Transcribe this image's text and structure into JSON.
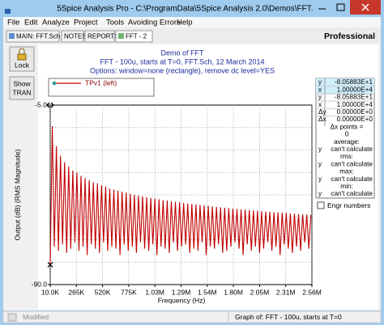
{
  "window": {
    "title": "5Spice Analysis Pro - C:\\ProgramData\\5Spice Analysis 2.0\\Demos\\FFT.Sch"
  },
  "menu": [
    "File",
    "Edit",
    "Analyze",
    "Project",
    "Tools",
    "Avoiding Errors",
    "Help"
  ],
  "tabs": [
    "MAIN: FFT.Sch",
    "NOTES",
    "REPORTS",
    "FFT - 2"
  ],
  "edition": "Professional",
  "buttons": {
    "lock": "Lock",
    "show_tran": [
      "Show",
      "TRAN"
    ]
  },
  "chart_data": {
    "type": "line",
    "title": [
      "Demo of FFT",
      "FFT - 100u, starts at T=0,    FFT.Sch,    12 March 2014",
      "Options: window=none (rectangle),  remove dc level=YES"
    ],
    "xlabel": "Frequency (Hz)",
    "ylabel": "Output (dB) (RMS Magnitude)",
    "xlim": [
      10000,
      2560000
    ],
    "ylim": [
      -90,
      -5
    ],
    "xticks": [
      {
        "value": 10000,
        "label": "10.0K"
      },
      {
        "value": 265000,
        "label": "265K"
      },
      {
        "value": 520000,
        "label": "520K"
      },
      {
        "value": 775000,
        "label": "775K"
      },
      {
        "value": 1030000,
        "label": "1.03M"
      },
      {
        "value": 1285000,
        "label": "1.29M"
      },
      {
        "value": 1540000,
        "label": "1.54M"
      },
      {
        "value": 1795000,
        "label": "1.80M"
      },
      {
        "value": 2050000,
        "label": "2.05M"
      },
      {
        "value": 2305000,
        "label": "2.31M"
      },
      {
        "value": 2560000,
        "label": "2.56M"
      }
    ],
    "yticks": [
      {
        "value": -5,
        "label": "-5.0"
      },
      {
        "value": -90,
        "label": "-90.0"
      }
    ],
    "grid": true,
    "x": [
      10000,
      30000,
      50000,
      70000,
      90000,
      110000,
      130000,
      150000,
      170000,
      190000,
      210000,
      230000,
      250000,
      270000,
      290000,
      310000,
      330000,
      350000,
      370000,
      390000,
      410000,
      430000,
      450000,
      470000,
      490000,
      510000,
      530000,
      550000,
      570000,
      590000,
      610000,
      630000,
      650000,
      670000,
      690000,
      710000,
      730000,
      750000,
      770000,
      790000,
      810000,
      830000,
      850000,
      870000,
      890000,
      910000,
      930000,
      950000,
      970000,
      990000,
      1010000,
      1030000,
      1050000,
      1070000,
      1090000,
      1110000,
      1130000,
      1150000,
      1170000,
      1190000,
      1210000,
      1230000,
      1250000,
      1270000,
      1290000,
      1310000,
      1330000,
      1350000,
      1370000,
      1390000,
      1410000,
      1430000,
      1450000,
      1470000,
      1490000,
      1510000,
      1530000,
      1550000,
      1570000,
      1590000,
      1610000,
      1630000,
      1650000,
      1670000,
      1690000,
      1710000,
      1730000,
      1750000,
      1770000,
      1790000,
      1810000,
      1830000,
      1850000,
      1870000,
      1890000,
      1910000,
      1930000,
      1950000,
      1970000,
      1990000,
      2010000,
      2030000,
      2050000,
      2070000,
      2090000,
      2110000,
      2130000,
      2150000,
      2170000,
      2190000,
      2210000,
      2230000,
      2250000,
      2270000,
      2290000,
      2310000,
      2330000,
      2350000,
      2370000,
      2390000,
      2410000,
      2430000,
      2450000,
      2470000,
      2490000,
      2510000,
      2530000,
      2550000
    ],
    "series": [
      {
        "name": "TPv1 (left)",
        "color": "#c00000",
        "values": [
          -80.6,
          -15,
          -72,
          -24.5,
          -74,
          -29,
          -71,
          -32,
          -75,
          -34,
          -73,
          -36,
          -70,
          -37,
          -74,
          -38.5,
          -72,
          -39.5,
          -76,
          -40.5,
          -71,
          -41.5,
          -73,
          -42,
          -75,
          -43,
          -70,
          -43.5,
          -74,
          -44.5,
          -72,
          -45,
          -73,
          -45.5,
          -76,
          -46,
          -71,
          -46.5,
          -74,
          -47,
          -72,
          -47.5,
          -75,
          -47.8,
          -70,
          -48.2,
          -73,
          -48.6,
          -74,
          -49,
          -71,
          -49.3,
          -76,
          -49.6,
          -72,
          -50,
          -73,
          -50.2,
          -75,
          -50.5,
          -70,
          -50.8,
          -74,
          -51,
          -72,
          -51.3,
          -71,
          -51.6,
          -75,
          -51.8,
          -73,
          -52,
          -74,
          -52.3,
          -70,
          -52.5,
          -76,
          -52.7,
          -72,
          -53,
          -73,
          -53.2,
          -71,
          -53.4,
          -75,
          -53.6,
          -74,
          -53.8,
          -72,
          -54,
          -70,
          -54.2,
          -73,
          -54.4,
          -76,
          -54.5,
          -71,
          -54.7,
          -74,
          -54.9,
          -72,
          -55,
          -75,
          -55.2,
          -73,
          -55.4,
          -70,
          -55.5,
          -74,
          -55.7,
          -72,
          -55.8,
          -76,
          -56,
          -71,
          -56.1,
          -73,
          -56.3,
          -75,
          -56.4,
          -72,
          -56.6,
          -74,
          -56.7,
          -70,
          -56.8,
          -73,
          -57
        ]
      }
    ]
  },
  "readout": [
    {
      "label": "y",
      "value": "-8.05883E+1"
    },
    {
      "label": "x",
      "value": "1.00000E+4"
    },
    {
      "label": "y",
      "value": "-8.05883E+1"
    },
    {
      "label": "x",
      "value": "1.00000E+4"
    },
    {
      "label": "Δy",
      "value": "0.00000E+0"
    },
    {
      "label": "Δx",
      "value": "0.00000E+0"
    },
    {
      "value": "Δx points ="
    },
    {
      "value": "0"
    },
    {
      "value": "average:"
    },
    {
      "label": "y",
      "value": "can't calculate"
    },
    {
      "value": "rms:"
    },
    {
      "label": "y",
      "value": "can't calculate"
    },
    {
      "value": "max:"
    },
    {
      "label": "y",
      "value": "can't calculate"
    },
    {
      "value": "min:"
    },
    {
      "label": "y",
      "value": "can't calculate"
    }
  ],
  "checkbox": "Engr numbers",
  "status": {
    "left": "Modified",
    "right": "Graph of:  FFT - 100u, starts at T=0"
  }
}
